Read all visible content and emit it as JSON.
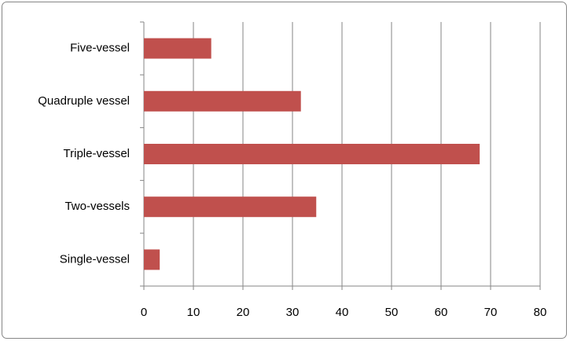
{
  "chart_data": {
    "type": "bar",
    "orientation": "horizontal",
    "categories": [
      "Five-vessel",
      "Quadruple vessel",
      "Triple-vessel",
      "Two-vessels",
      "Single-vessel"
    ],
    "values": [
      13.6,
      31.7,
      67.8,
      34.8,
      3.2
    ],
    "color": "#c0504d",
    "xlim": [
      0,
      80
    ],
    "xticks": [
      0,
      10,
      20,
      30,
      40,
      50,
      60,
      70,
      80
    ],
    "grid": true
  }
}
